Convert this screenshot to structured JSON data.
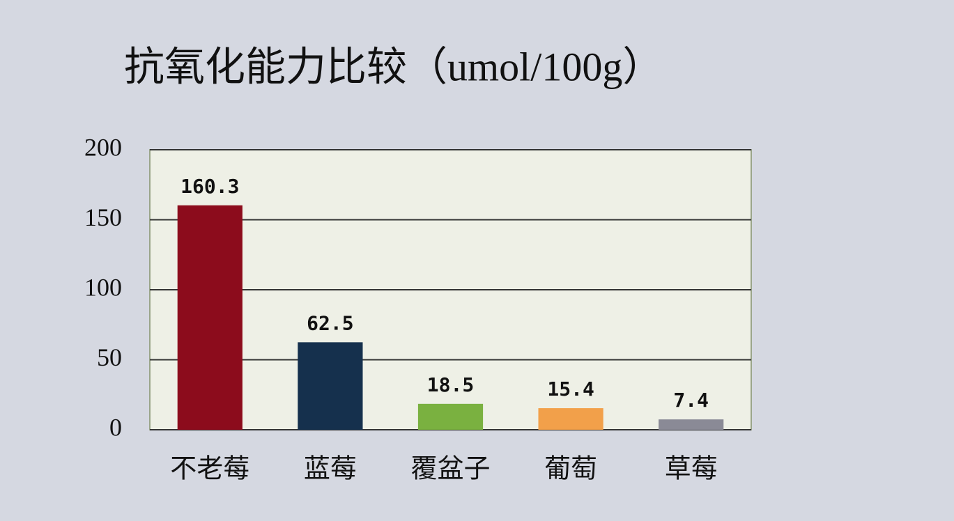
{
  "chart_data": {
    "type": "bar",
    "title": "抗氧化能力比较（umol/100g）",
    "categories": [
      "不老莓",
      "蓝莓",
      "覆盆子",
      "葡萄",
      "草莓"
    ],
    "values": [
      160.3,
      62.5,
      18.5,
      15.4,
      7.4
    ],
    "colors": [
      "#8c0c1c",
      "#15304d",
      "#7ab140",
      "#f2a04a",
      "#8a8a96"
    ],
    "ylim": [
      0,
      200
    ],
    "yticks": [
      0,
      50,
      100,
      150,
      200
    ],
    "grid": true
  }
}
